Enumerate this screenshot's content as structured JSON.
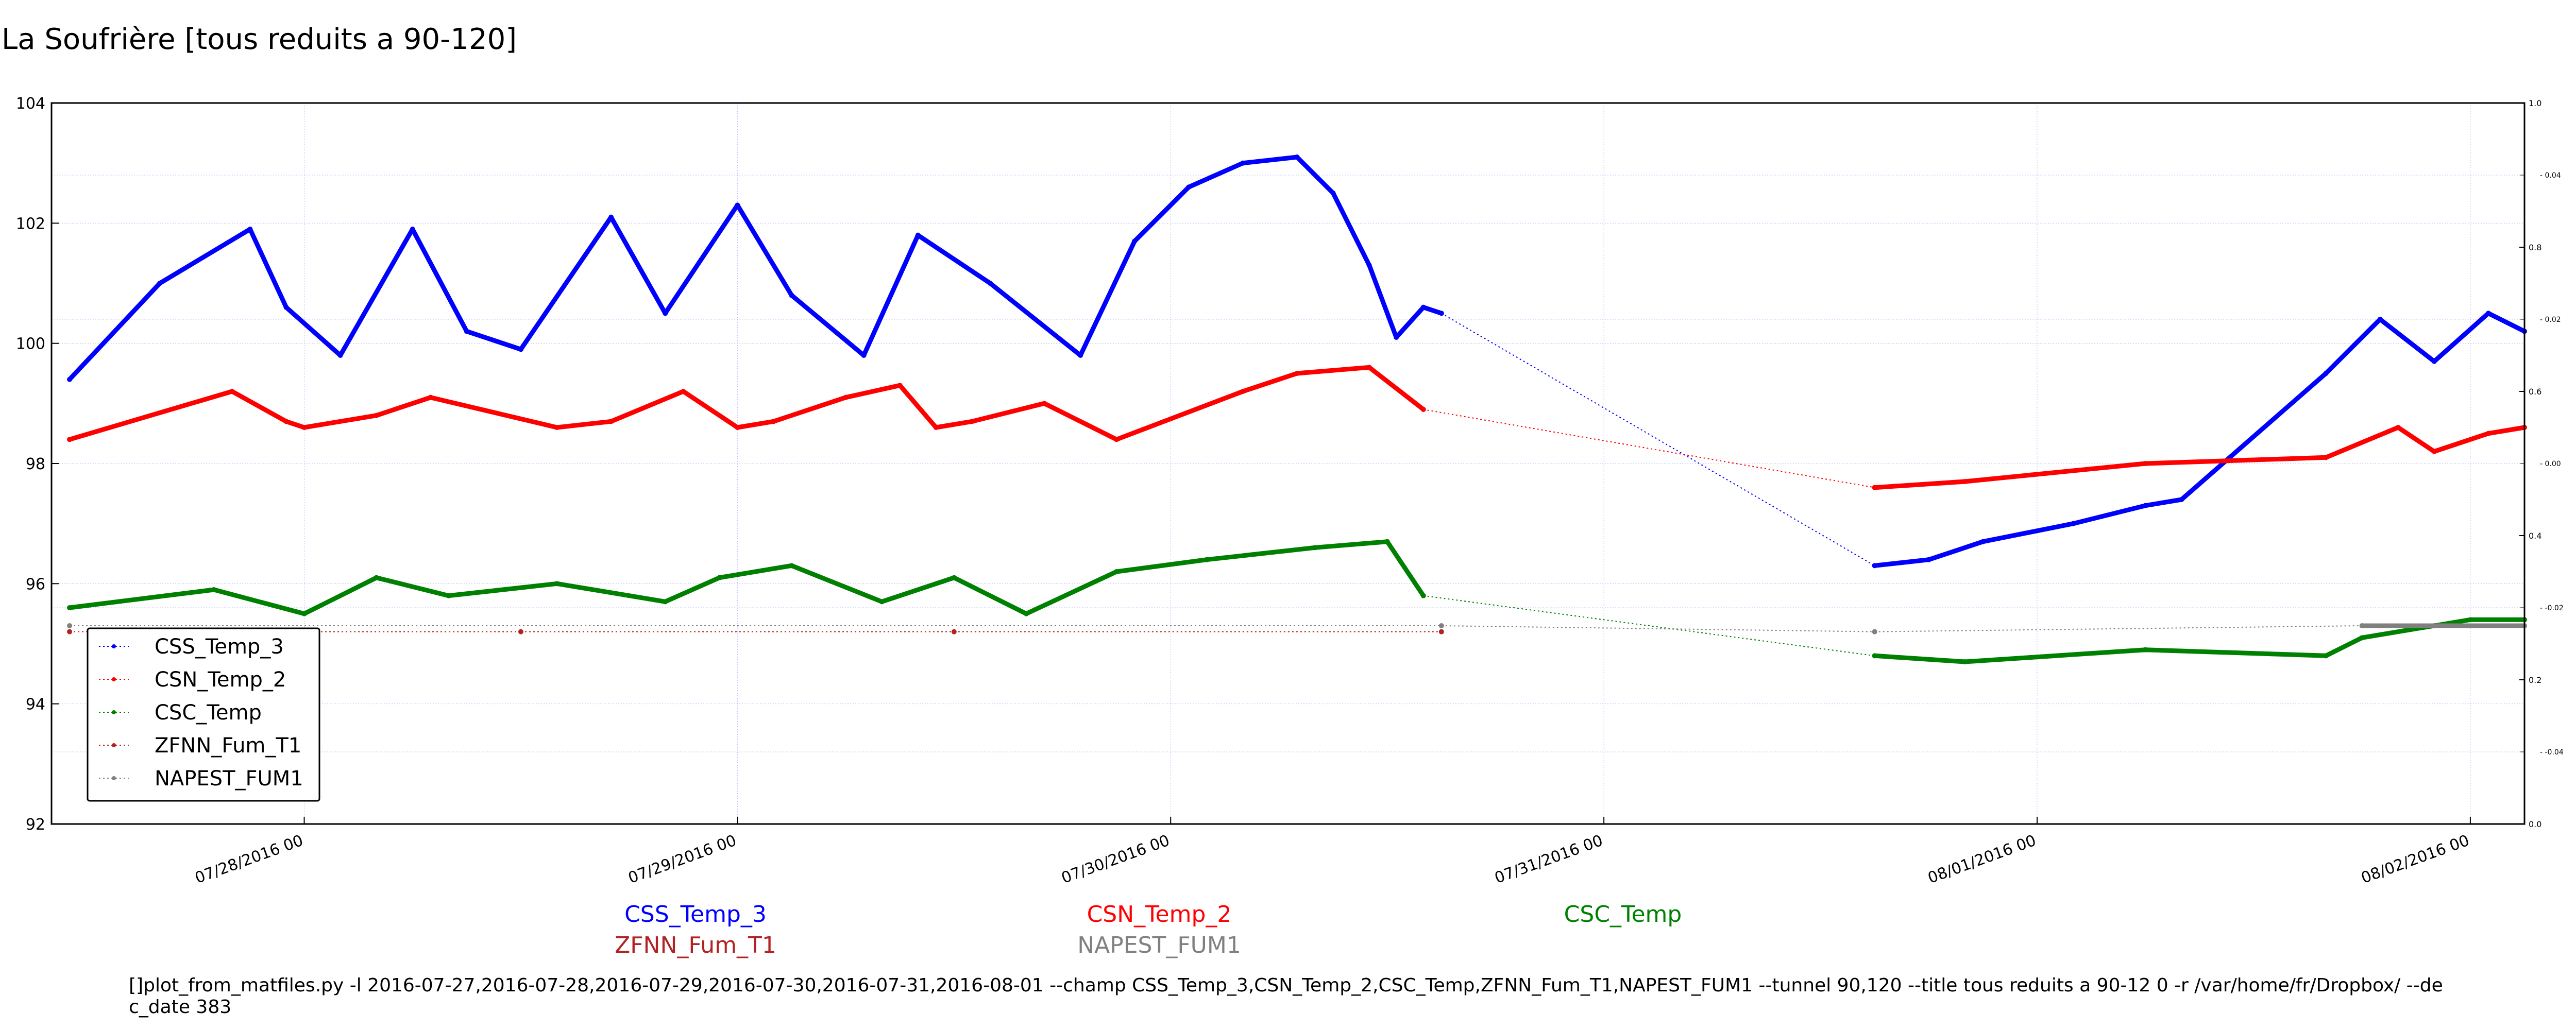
{
  "chart_data": {
    "type": "line",
    "title": "La Soufrière [tous reduits a 90-120]",
    "xlabel": "",
    "ylabel": "",
    "ylim": [
      92,
      104
    ],
    "xlim": [
      "2016-07-27 10:00",
      "2016-08-02 03:00"
    ],
    "yticks": [
      "92",
      "94",
      "96",
      "98",
      "100",
      "102",
      "104"
    ],
    "xticks": [
      "07/28/2016 00",
      "07/29/2016 00",
      "07/30/2016 00",
      "07/31/2016 00",
      "08/01/2016 00",
      "08/02/2016 00"
    ],
    "right_axis_major_ticks": [
      "0.0",
      "0.2",
      "0.4",
      "0.6",
      "0.8",
      "1.0"
    ],
    "right_axis_minor_ticks": [
      "-0.04",
      "-0.02",
      "0.00",
      "0.02",
      "0.04"
    ],
    "grid": true,
    "legend_position": "lower-left",
    "series": [
      {
        "name": "CSS_Temp_3",
        "color": "#0000ff",
        "x": [
          "2016-07-27 11:00",
          "2016-07-27 16:00",
          "2016-07-27 21:00",
          "2016-07-27 23:00",
          "2016-07-28 02:00",
          "2016-07-28 06:00",
          "2016-07-28 09:00",
          "2016-07-28 12:00",
          "2016-07-28 17:00",
          "2016-07-28 20:00",
          "2016-07-29 00:00",
          "2016-07-29 03:00",
          "2016-07-29 07:00",
          "2016-07-29 10:00",
          "2016-07-29 14:00",
          "2016-07-29 19:00",
          "2016-07-29 22:00",
          "2016-07-30 01:00",
          "2016-07-30 04:00",
          "2016-07-30 07:00",
          "2016-07-30 09:00",
          "2016-07-30 11:00",
          "2016-07-30 12:30",
          "2016-07-30 14:00",
          "2016-07-30 15:00",
          "2016-07-31 15:00",
          "2016-07-31 18:00",
          "2016-07-31 21:00",
          "2016-08-01 02:00",
          "2016-08-01 06:00",
          "2016-08-01 08:00",
          "2016-08-01 16:00",
          "2016-08-01 19:00",
          "2016-08-01 22:00",
          "2016-08-02 01:00",
          "2016-08-02 03:00"
        ],
        "values": [
          99.4,
          101.0,
          101.9,
          100.6,
          99.8,
          101.9,
          100.2,
          99.9,
          102.1,
          100.5,
          102.3,
          100.8,
          99.8,
          101.8,
          101.0,
          99.8,
          101.7,
          102.6,
          103.0,
          103.1,
          102.5,
          101.3,
          100.1,
          100.6,
          100.5,
          96.3,
          96.4,
          96.7,
          97.0,
          97.3,
          97.4,
          99.5,
          100.4,
          99.7,
          100.5,
          100.2
        ]
      },
      {
        "name": "CSN_Temp_2",
        "color": "#ff0000",
        "x": [
          "2016-07-27 11:00",
          "2016-07-27 20:00",
          "2016-07-27 23:00",
          "2016-07-28 00:00",
          "2016-07-28 04:00",
          "2016-07-28 07:00",
          "2016-07-28 14:00",
          "2016-07-28 17:00",
          "2016-07-28 21:00",
          "2016-07-29 00:00",
          "2016-07-29 02:00",
          "2016-07-29 06:00",
          "2016-07-29 09:00",
          "2016-07-29 11:00",
          "2016-07-29 13:00",
          "2016-07-29 17:00",
          "2016-07-29 21:00",
          "2016-07-30 04:00",
          "2016-07-30 07:00",
          "2016-07-30 11:00",
          "2016-07-30 14:00",
          "2016-07-31 15:00",
          "2016-07-31 20:00",
          "2016-08-01 06:00",
          "2016-08-01 16:00",
          "2016-08-01 20:00",
          "2016-08-01 22:00",
          "2016-08-02 01:00",
          "2016-08-02 03:00"
        ],
        "values": [
          98.4,
          99.2,
          98.7,
          98.6,
          98.8,
          99.1,
          98.6,
          98.7,
          99.2,
          98.6,
          98.7,
          99.1,
          99.3,
          98.6,
          98.7,
          99.0,
          98.4,
          99.2,
          99.5,
          99.6,
          98.9,
          97.6,
          97.7,
          98.0,
          98.1,
          98.6,
          98.2,
          98.5,
          98.6
        ]
      },
      {
        "name": "CSC_Temp",
        "color": "#008000",
        "x": [
          "2016-07-27 11:00",
          "2016-07-27 19:00",
          "2016-07-28 00:00",
          "2016-07-28 04:00",
          "2016-07-28 08:00",
          "2016-07-28 14:00",
          "2016-07-28 20:00",
          "2016-07-28 23:00",
          "2016-07-29 03:00",
          "2016-07-29 08:00",
          "2016-07-29 12:00",
          "2016-07-29 16:00",
          "2016-07-29 21:00",
          "2016-07-30 02:00",
          "2016-07-30 08:00",
          "2016-07-30 12:00",
          "2016-07-30 14:00",
          "2016-07-31 15:00",
          "2016-07-31 20:00",
          "2016-08-01 06:00",
          "2016-08-01 16:00",
          "2016-08-01 18:00",
          "2016-08-02 00:00",
          "2016-08-02 03:00"
        ],
        "values": [
          95.6,
          95.9,
          95.5,
          96.1,
          95.8,
          96.0,
          95.7,
          96.1,
          96.3,
          95.7,
          96.1,
          95.5,
          96.2,
          96.4,
          96.6,
          96.7,
          95.8,
          94.8,
          94.7,
          94.9,
          94.8,
          95.1,
          95.4,
          95.4
        ]
      },
      {
        "name": "ZFNN_Fum_T1",
        "color": "#b22222",
        "x": [
          "2016-07-27 11:00",
          "2016-07-28 12:00",
          "2016-07-29 12:00",
          "2016-07-30 15:00"
        ],
        "values": [
          95.2,
          95.2,
          95.2,
          95.2
        ]
      },
      {
        "name": "NAPEST_FUM1",
        "color": "#808080",
        "x": [
          "2016-07-27 11:00",
          "2016-07-30 15:00",
          "2016-07-31 15:00",
          "2016-08-01 18:00",
          "2016-08-01 22:00",
          "2016-08-02 03:00"
        ],
        "values": [
          95.3,
          95.3,
          95.2,
          95.3,
          95.3,
          95.3
        ]
      }
    ]
  },
  "legend": {
    "items": [
      {
        "label": "CSS_Temp_3",
        "color": "#0000ff"
      },
      {
        "label": "CSN_Temp_2",
        "color": "#ff0000"
      },
      {
        "label": "CSC_Temp",
        "color": "#008000"
      },
      {
        "label": "ZFNN_Fum_T1",
        "color": "#b22222"
      },
      {
        "label": "NAPEST_FUM1",
        "color": "#808080"
      }
    ]
  },
  "series_labels": [
    {
      "label": "CSS_Temp_3",
      "color": "#0000ff"
    },
    {
      "label": "CSN_Temp_2",
      "color": "#ff0000"
    },
    {
      "label": "CSC_Temp",
      "color": "#008000"
    },
    {
      "label": "ZFNN_Fum_T1",
      "color": "#b22222"
    },
    {
      "label": "NAPEST_FUM1",
      "color": "#808080"
    }
  ],
  "command_line": "[]plot_from_matfiles.py -l 2016-07-27,2016-07-28,2016-07-29,2016-07-30,2016-07-31,2016-08-01 --champ CSS_Temp_3,CSN_Temp_2,CSC_Temp,ZFNN_Fum_T1,NAPEST_FUM1 --tunnel 90,120 --title tous reduits a 90-12 0 -r /var/home/fr/Dropbox/ --dec_date 383"
}
